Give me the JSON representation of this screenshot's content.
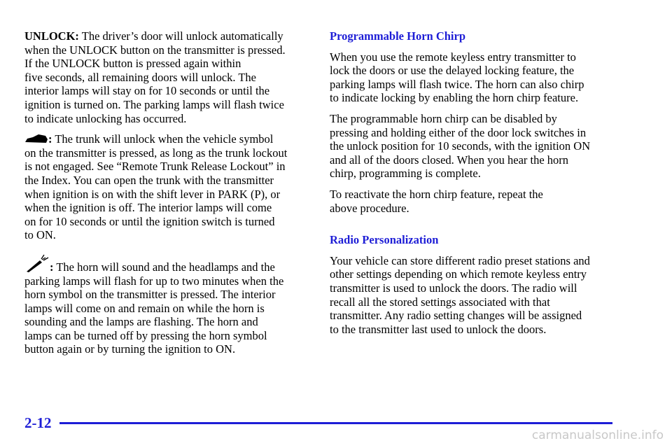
{
  "left": {
    "paragraphs": [
      {
        "lead": "UNLOCK:",
        "lines": [
          "The driver’s door will unlock automatically",
          "when the UNLOCK button on the transmitter is pressed.",
          "If the UNLOCK button is pressed again within",
          "five seconds, all remaining doors will unlock. The",
          "interior lamps will stay on for 10 seconds or until the",
          "ignition is turned on. The parking lamps will flash twice",
          "to indicate unlocking has occurred."
        ]
      },
      {
        "lead": ":",
        "lines": [
          "The trunk will unlock when the vehicle symbol",
          "on the transmitter is pressed, as long as the trunk lockout",
          "is not engaged. See “Remote Trunk Release Lockout” in",
          "the Index. You can open the trunk with the transmitter",
          "when ignition is on with the shift lever in PARK (P), or",
          "when the ignition is off. The interior lamps will come",
          "on for 10 seconds or until the ignition switch is turned",
          "to ON."
        ]
      },
      {
        "lead": ":",
        "lines": [
          "The horn will sound and the headlamps and the",
          "parking lamps will flash for up to two minutes when the",
          "horn symbol on the transmitter is pressed. The interior",
          "lamps will come on and remain on while the horn is",
          "sounding and the lamps are flashing. The horn and",
          "lamps can be turned off by pressing the horn symbol",
          "button again or by turning the ignition to ON."
        ]
      }
    ]
  },
  "right": {
    "sections": [
      {
        "heading": "Programmable Horn Chirp",
        "paragraphs": [
          [
            "When you use the remote keyless entry transmitter to",
            "lock the doors or use the delayed locking feature, the",
            "parking lamps will flash twice. The horn can also chirp",
            "to indicate locking by enabling the horn chirp feature."
          ],
          [
            "The programmable horn chirp can be disabled by",
            "pressing and holding either of the door lock switches in",
            "the unlock position for 10 seconds, with the ignition ON",
            "and all of the doors closed. When you hear the horn",
            "chirp, programming is complete."
          ],
          [
            "To reactivate the horn chirp feature, repeat the",
            "above procedure."
          ]
        ]
      },
      {
        "heading": "Radio Personalization",
        "paragraphs": [
          [
            "Your vehicle can store different radio preset stations and",
            "other settings depending on which remote keyless entry",
            "transmitter is used to unlock the doors. The radio will",
            "recall all the stored settings associated with that",
            "transmitter. Any radio setting changes will be assigned",
            "to the transmitter last used to unlock the doors."
          ]
        ]
      }
    ]
  },
  "footer": {
    "page_number": "2-12",
    "watermark": "carmanualsonline.info"
  }
}
